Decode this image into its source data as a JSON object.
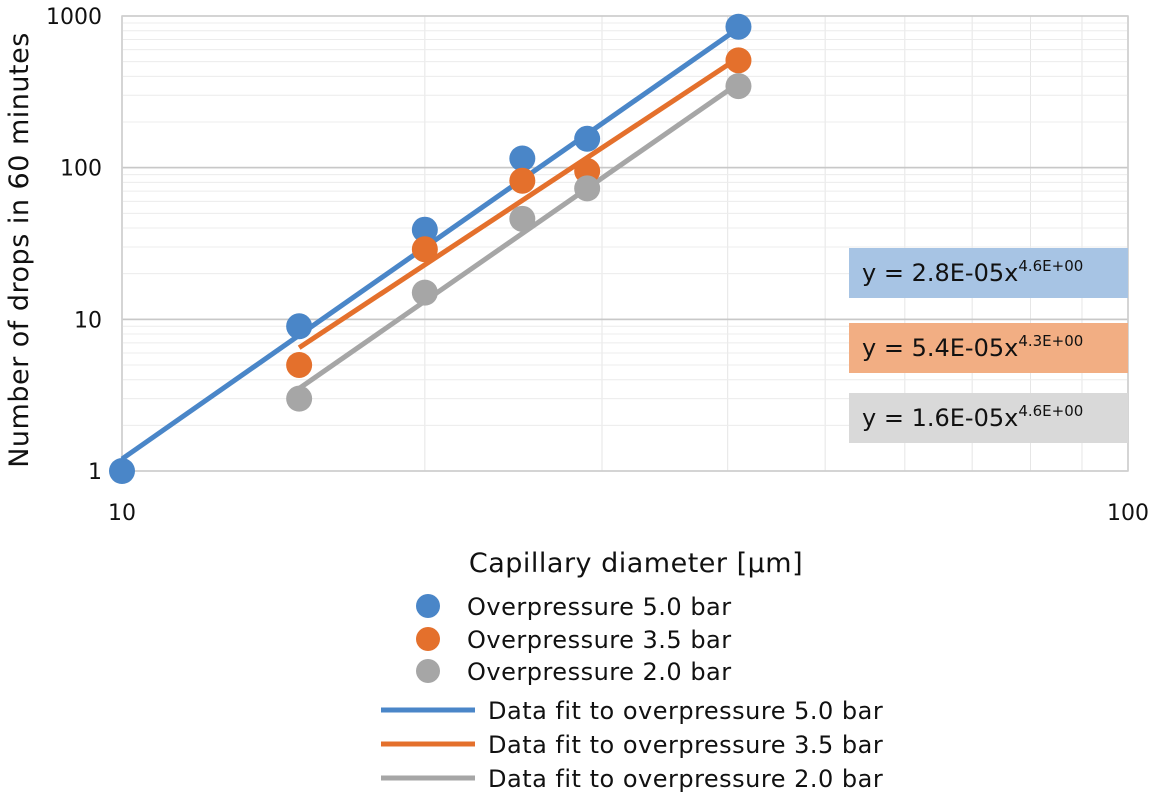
{
  "chart_data": {
    "type": "scatter",
    "xlabel": "Capillary diameter [µm]",
    "ylabel": "Number of drops in 60 minutes",
    "xscale": "log",
    "yscale": "log",
    "xlim": [
      10,
      100
    ],
    "ylim": [
      1,
      1000
    ],
    "x_ticks": [
      "10",
      "100"
    ],
    "y_ticks": [
      "1",
      "10",
      "100",
      "1000"
    ],
    "grid": true,
    "legend_position": "bottom",
    "series": [
      {
        "name": "Overpressure  5.0 bar",
        "kind": "points",
        "color": "#4a86c8",
        "x": [
          10,
          15,
          20,
          25,
          29,
          41
        ],
        "y": [
          1,
          9,
          39,
          115,
          155,
          850
        ]
      },
      {
        "name": "Overpressure  3.5 bar",
        "kind": "points",
        "color": "#e4702c",
        "x": [
          15,
          20,
          25,
          29,
          41
        ],
        "y": [
          5,
          29,
          82,
          95,
          510
        ]
      },
      {
        "name": "Overpressure  2.0 bar",
        "kind": "points",
        "color": "#a6a6a6",
        "x": [
          15,
          20,
          25,
          29,
          41
        ],
        "y": [
          3,
          15,
          46,
          73,
          345
        ]
      },
      {
        "name": "Data fit to overpressure  5.0 bar",
        "kind": "fit",
        "color": "#4a86c8",
        "x": [
          10,
          41
        ],
        "y": [
          1.2,
          830
        ]
      },
      {
        "name": "Data fit to overpressure  3.5 bar",
        "kind": "fit",
        "color": "#e4702c",
        "x": [
          15,
          41
        ],
        "y": [
          6.5,
          530
        ]
      },
      {
        "name": "Data fit to overpressure  2.0 bar",
        "kind": "fit",
        "color": "#a6a6a6",
        "x": [
          15,
          41
        ],
        "y": [
          3.5,
          360
        ]
      }
    ],
    "annotations": [
      {
        "base": "y = 2.8E-05x",
        "exponent": "4.6E+00",
        "bg": "#a7c4e4"
      },
      {
        "base": "y = 5.4E-05x",
        "exponent": "4.3E+00",
        "bg": "#f2ae83"
      },
      {
        "base": "y = 1.6E-05x",
        "exponent": "4.6E+00",
        "bg": "#d9d9d9"
      }
    ]
  }
}
